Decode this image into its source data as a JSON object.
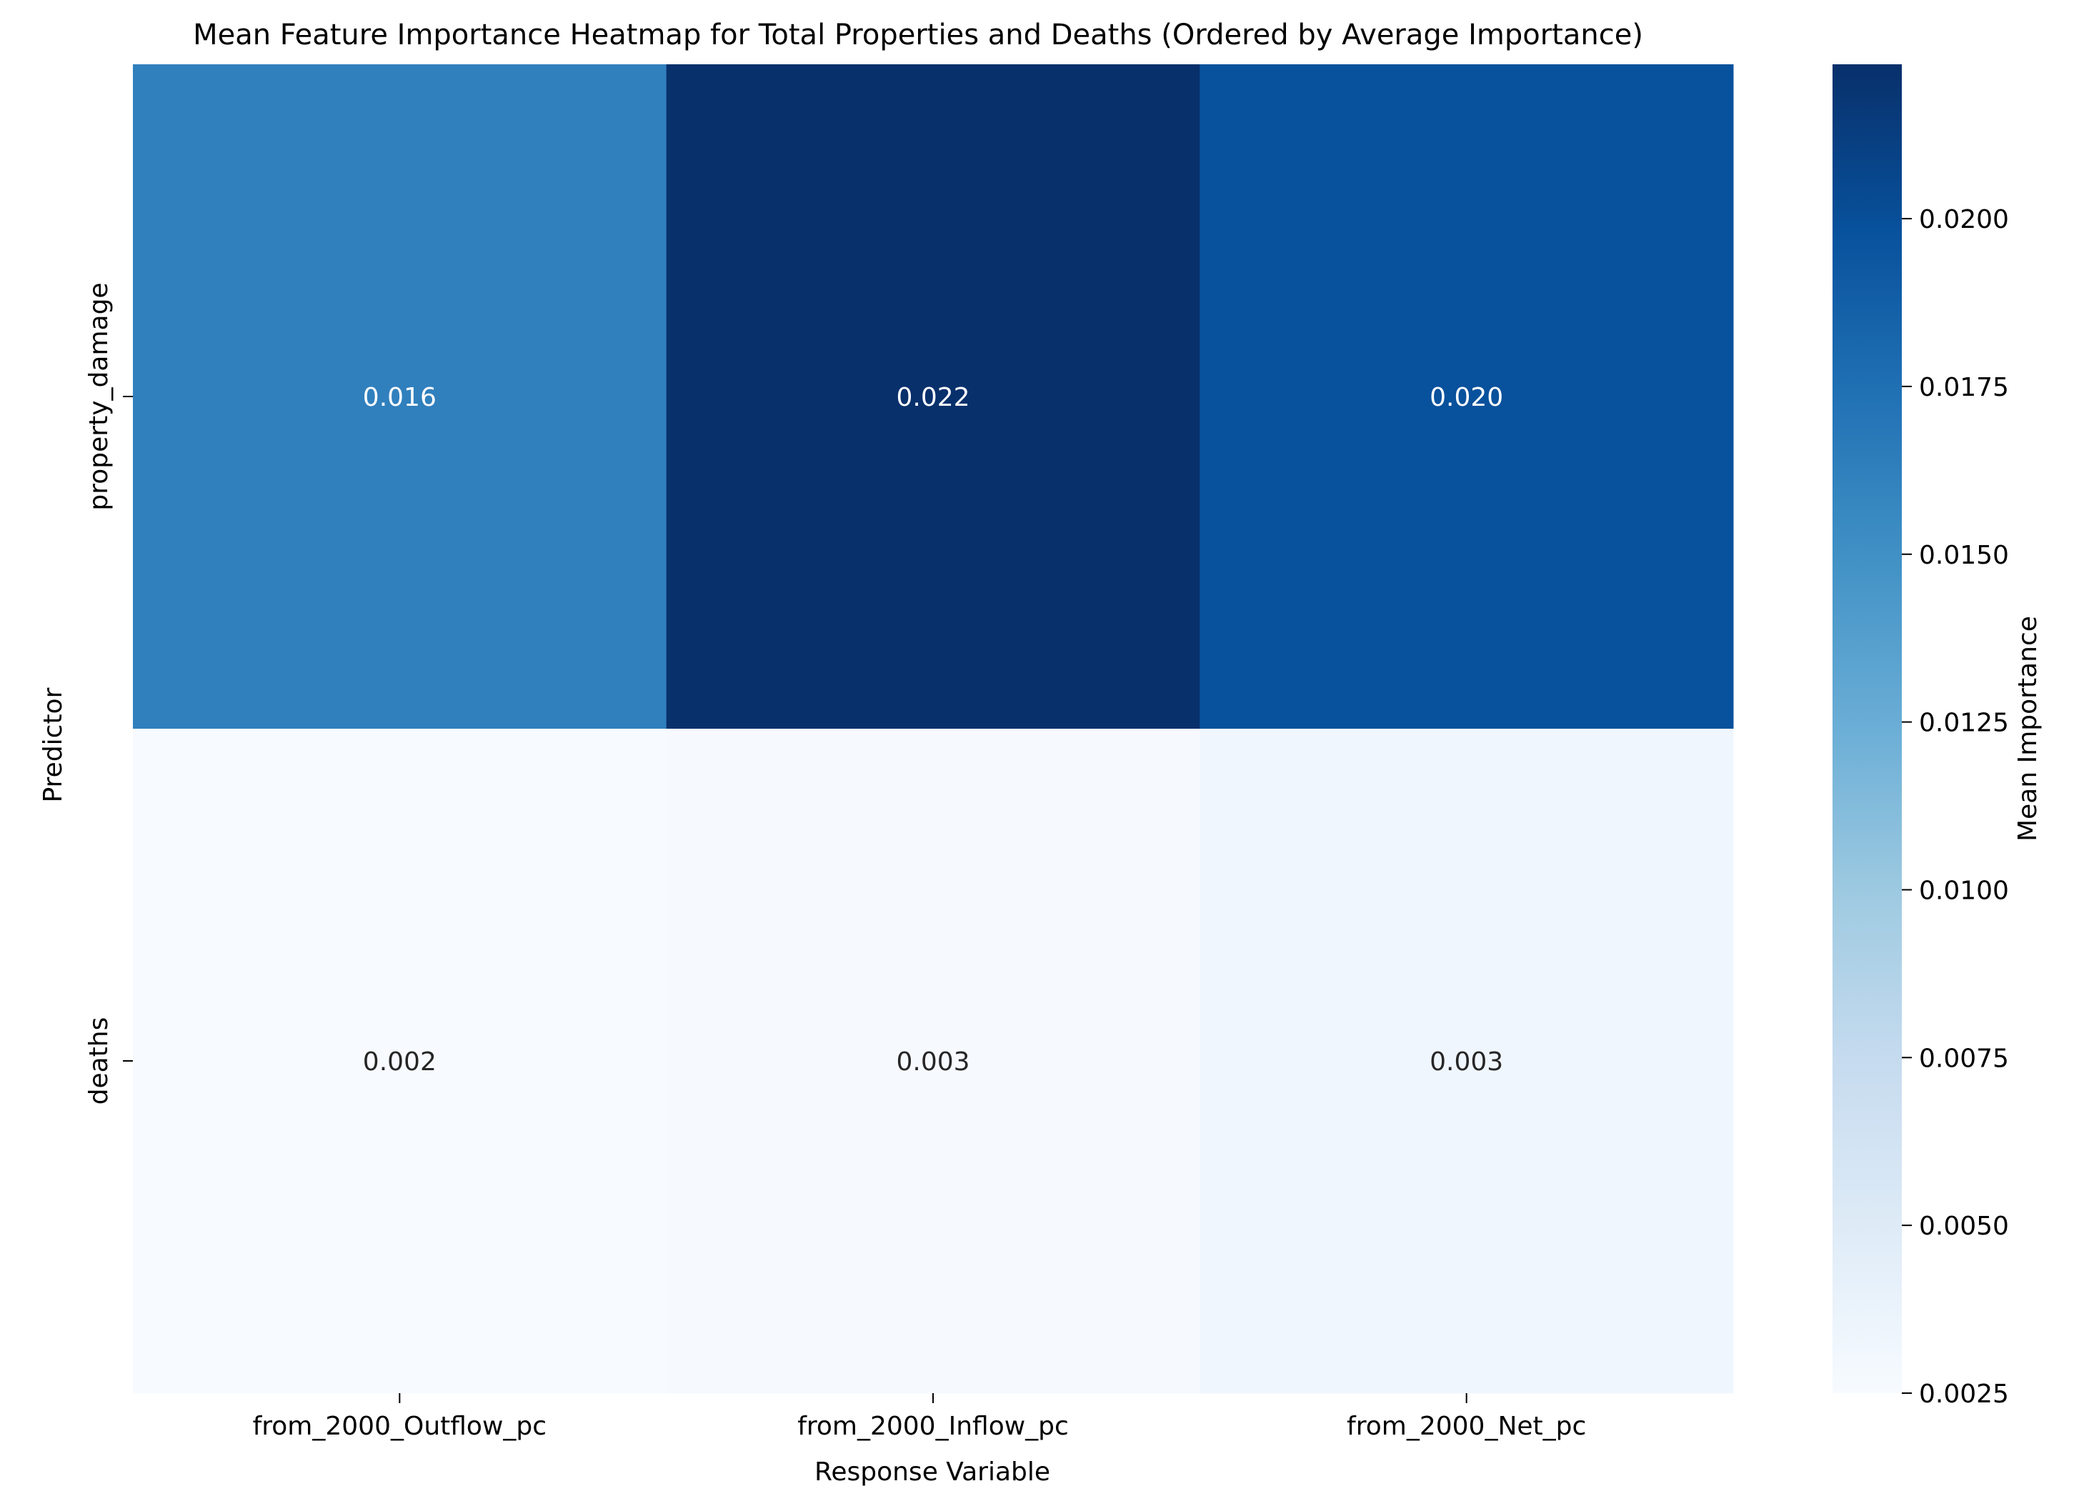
{
  "chart_data": {
    "type": "heatmap",
    "title": "Mean Feature Importance Heatmap for Total Properties and Deaths (Ordered by Average Importance)",
    "xlabel": "Response Variable",
    "ylabel": "Predictor",
    "columns": [
      "from_2000_Outflow_pc",
      "from_2000_Inflow_pc",
      "from_2000_Net_pc"
    ],
    "rows": [
      "property_damage",
      "deaths"
    ],
    "values": [
      [
        0.0162,
        0.0223,
        0.0198
      ],
      [
        0.0021,
        0.0026,
        0.0032
      ]
    ],
    "value_labels": [
      [
        "0.016",
        "0.022",
        "0.020"
      ],
      [
        "0.002",
        "0.003",
        "0.003"
      ]
    ],
    "colorbar": {
      "label": "Mean Importance",
      "range": [
        0.0025,
        0.0223
      ],
      "ticks": [
        0.0025,
        0.005,
        0.0075,
        0.01,
        0.0125,
        0.015,
        0.0175,
        0.02
      ],
      "tick_labels": [
        "0.0025",
        "0.0050",
        "0.0075",
        "0.0100",
        "0.0125",
        "0.0150",
        "0.0175",
        "0.0200"
      ],
      "colormap": "Blues",
      "colors": [
        "#f7fbff",
        "#deebf7",
        "#c6dbef",
        "#9ecae1",
        "#6baed6",
        "#4292c6",
        "#2171b5",
        "#08519c",
        "#08306b"
      ]
    },
    "annotation_colors": {
      "dark": "#262626",
      "light": "#ffffff"
    }
  }
}
